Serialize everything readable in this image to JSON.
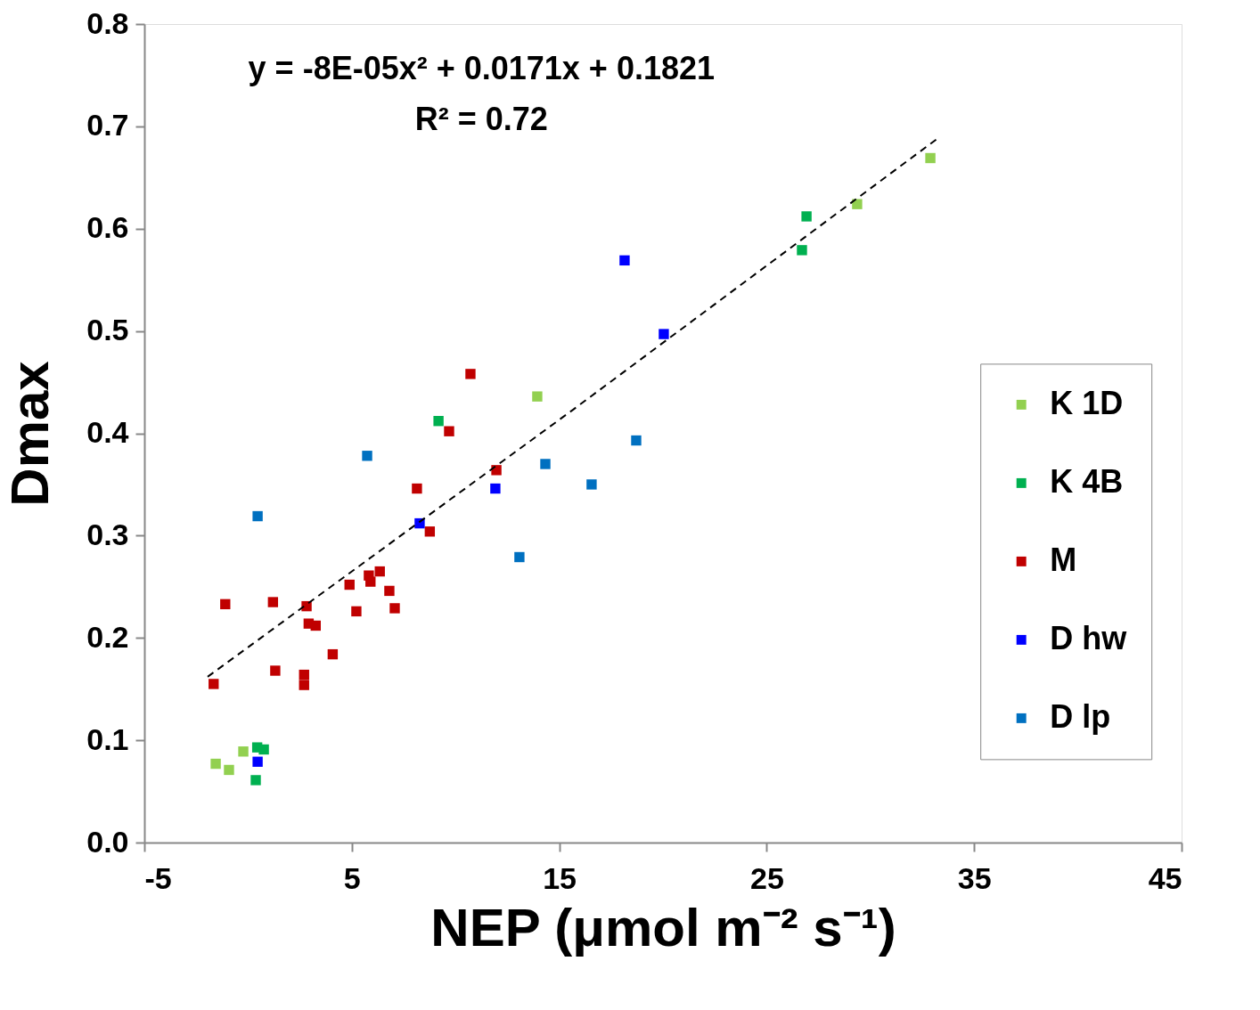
{
  "chart_data": {
    "type": "scatter",
    "xlabel": "NEP (μmol m⁻² s⁻¹)",
    "ylabel": "Dmax",
    "annotations": [
      "y = -8E-05x² + 0.0171x + 0.1821",
      "R² = 0.72"
    ],
    "xlim": [
      -5,
      45
    ],
    "xticks": [
      -5,
      5,
      15,
      25,
      35,
      45
    ],
    "ylim": [
      0,
      0.8
    ],
    "yticks": [
      {
        "value": 0,
        "label": "0.0"
      },
      0.1,
      0.2,
      0.3,
      0.4,
      0.5,
      0.6,
      0.7,
      0.8
    ],
    "grid": false,
    "legend": "right",
    "marker": "square",
    "series": [
      {
        "name": "K 1D",
        "color": "#92d050",
        "x": [
          -1.56,
          -0.92,
          -0.23,
          13.94,
          29.36,
          32.89
        ],
        "values": [
          0.077,
          0.071,
          0.089,
          0.436,
          0.624,
          0.669
        ]
      },
      {
        "name": "K 4B",
        "color": "#00b050",
        "x": [
          0.44,
          0.76,
          0.37,
          9.18,
          26.92,
          26.7
        ],
        "values": [
          0.093,
          0.091,
          0.061,
          0.412,
          0.612,
          0.579
        ]
      },
      {
        "name": "M",
        "color": "#c00000",
        "x": [
          -1.1,
          1.2,
          2.82,
          2.92,
          3.26,
          4.89,
          5.22,
          5.82,
          5.9,
          6.35,
          6.81,
          7.07,
          4.08,
          1.31,
          2.7,
          2.7,
          -1.66,
          8.76,
          10.72,
          9.69,
          8.14,
          11.97
        ],
        "values": [
          0.233,
          0.235,
          0.231,
          0.214,
          0.212,
          0.252,
          0.226,
          0.261,
          0.255,
          0.265,
          0.246,
          0.229,
          0.184,
          0.168,
          0.164,
          0.154,
          0.155,
          0.304,
          0.458,
          0.402,
          0.346,
          0.364
        ]
      },
      {
        "name": "D hw",
        "color": "#0000ff",
        "x": [
          0.46,
          8.27,
          11.92,
          18.15,
          20.04
        ],
        "values": [
          0.079,
          0.312,
          0.346,
          0.569,
          0.497
        ]
      },
      {
        "name": "D lp",
        "color": "#0070c0",
        "x": [
          0.46,
          5.74,
          14.33,
          16.56,
          18.71,
          13.08
        ],
        "values": [
          0.319,
          0.378,
          0.37,
          0.35,
          0.393,
          0.279
        ]
      },
      {
        "type": "line",
        "color": "#000000",
        "line_style": "dashed",
        "marker": "none",
        "x": [
          -1.95,
          15.66,
          33.36
        ],
        "values": [
          0.162,
          0.423,
          0.69
        ]
      }
    ]
  }
}
